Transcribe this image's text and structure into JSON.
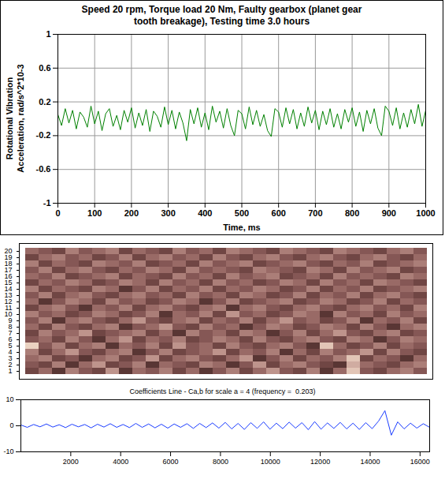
{
  "chart_data": [
    {
      "type": "line",
      "title": "Speed 20 rpm, Torque load 20 Nm, Faulty gearbox (planet gear tooth breakage), Testing time 3.0 hours",
      "xlabel": "Time, ms",
      "ylabel": "Rotational Vibration Acceleration, rad/s^2*10-3",
      "color": "#008000",
      "grid": true,
      "xlim": [
        0,
        1000
      ],
      "ylim": [
        -1,
        1
      ],
      "xticks": [
        0,
        100,
        200,
        300,
        400,
        500,
        600,
        700,
        800,
        900,
        1000
      ],
      "yticks": [
        -1,
        -0.6,
        -0.2,
        0.2,
        0.6,
        1
      ],
      "x": [
        0,
        10,
        20,
        30,
        40,
        50,
        60,
        70,
        80,
        90,
        100,
        110,
        120,
        130,
        140,
        150,
        160,
        170,
        180,
        190,
        200,
        210,
        220,
        230,
        240,
        250,
        260,
        270,
        280,
        290,
        300,
        310,
        320,
        330,
        340,
        350,
        360,
        370,
        380,
        390,
        400,
        410,
        420,
        430,
        440,
        450,
        460,
        470,
        480,
        490,
        500,
        510,
        520,
        530,
        540,
        550,
        560,
        570,
        580,
        590,
        600,
        610,
        620,
        630,
        640,
        650,
        660,
        670,
        680,
        690,
        700,
        710,
        720,
        730,
        740,
        750,
        760,
        770,
        780,
        790,
        800,
        810,
        820,
        830,
        840,
        850,
        860,
        870,
        880,
        890,
        900,
        910,
        920,
        930,
        940,
        950,
        960,
        970,
        980,
        990,
        1000
      ],
      "values": [
        0.05,
        -0.08,
        0.12,
        -0.05,
        0.1,
        -0.12,
        0.08,
        0.02,
        -0.1,
        0.15,
        -0.06,
        0.09,
        -0.14,
        0.06,
        0.12,
        -0.09,
        0.04,
        -0.13,
        0.1,
        -0.04,
        0.13,
        -0.11,
        0.07,
        -0.08,
        0.11,
        -0.15,
        0.09,
        0.03,
        -0.1,
        0.14,
        -0.07,
        0.1,
        -0.12,
        0.08,
        -0.05,
        -0.26,
        0.11,
        -0.06,
        0.13,
        -0.1,
        0.07,
        -0.13,
        0.15,
        -0.04,
        0.09,
        -0.11,
        0.12,
        -0.08,
        -0.2,
        0.1,
        0.06,
        -0.12,
        0.14,
        -0.07,
        0.1,
        -0.09,
        0.05,
        -0.14,
        -0.21,
        0.12,
        0.08,
        -0.1,
        0.13,
        -0.06,
        0.11,
        -0.12,
        0.07,
        -0.09,
        0.14,
        -0.05,
        0.1,
        -0.13,
        0.09,
        -0.07,
        0.12,
        -0.1,
        0.06,
        -0.12,
        0.11,
        -0.04,
        0.13,
        -0.09,
        0.08,
        -0.15,
        0.1,
        -0.06,
        0.12,
        -0.11,
        -0.2,
        0.15,
        0.09,
        -0.08,
        0.13,
        -0.12,
        0.07,
        -0.1,
        0.11,
        -0.06,
        0.17,
        -0.09,
        0.1
      ]
    },
    {
      "type": "heatmap",
      "tick_labels": "y",
      "rows": [
        1,
        2,
        3,
        4,
        5,
        6,
        7,
        8,
        9,
        10,
        11,
        12,
        13,
        14,
        15,
        16,
        17,
        18,
        19,
        20
      ],
      "yticks": [
        1,
        2,
        3,
        4,
        5,
        6,
        7,
        8,
        9,
        10,
        11,
        12,
        13,
        14,
        15,
        16,
        17,
        18,
        19,
        20
      ],
      "clim": [
        0,
        1
      ],
      "cells": [
        [
          0.3,
          0.5,
          0.2,
          0.6,
          0.4,
          0.3,
          0.7,
          0.2,
          0.5,
          0.4,
          0.6,
          0.3,
          0.5,
          0.2,
          0.4,
          0.6,
          0.3,
          0.5,
          0.7,
          0.4,
          0.3,
          0.6,
          0.2,
          0.5,
          0.9,
          0.4,
          0.3,
          0.5,
          0.6,
          0.4
        ],
        [
          0.4,
          0.3,
          0.6,
          0.2,
          0.5,
          0.7,
          0.3,
          0.4,
          0.6,
          0.2,
          0.5,
          0.4,
          0.3,
          0.6,
          0.5,
          0.2,
          0.4,
          0.7,
          0.3,
          0.5,
          0.6,
          0.4,
          0.3,
          0.2,
          0.8,
          0.5,
          0.4,
          0.3,
          0.5,
          0.6
        ],
        [
          0.5,
          0.6,
          0.3,
          0.4,
          0.2,
          0.5,
          0.6,
          0.3,
          0.4,
          0.7,
          0.3,
          0.5,
          0.6,
          0.4,
          0.3,
          0.5,
          0.7,
          0.2,
          0.4,
          0.6,
          0.3,
          0.5,
          0.4,
          0.6,
          0.9,
          0.3,
          0.5,
          0.4,
          0.2,
          0.5
        ],
        [
          0.6,
          0.3,
          0.5,
          0.7,
          0.4,
          0.3,
          0.5,
          0.6,
          0.2,
          0.4,
          0.6,
          0.3,
          0.4,
          0.5,
          0.7,
          0.3,
          0.5,
          0.4,
          0.6,
          0.2,
          0.5,
          0.3,
          0.6,
          0.4,
          0.5,
          0.7,
          0.3,
          0.6,
          0.4,
          0.3
        ],
        [
          0.95,
          0.4,
          0.6,
          0.3,
          0.5,
          0.6,
          0.2,
          0.5,
          0.4,
          0.6,
          0.3,
          0.7,
          0.4,
          0.5,
          0.3,
          0.6,
          0.4,
          0.3,
          0.5,
          0.6,
          0.4,
          0.2,
          0.9,
          0.5,
          0.3,
          0.4,
          0.6,
          0.3,
          0.5,
          0.4
        ],
        [
          0.4,
          0.5,
          0.3,
          0.6,
          0.4,
          0.2,
          0.5,
          0.7,
          0.3,
          0.5,
          0.4,
          0.6,
          0.3,
          0.4,
          0.6,
          0.5,
          0.3,
          0.6,
          0.4,
          0.3,
          0.5,
          0.6,
          0.4,
          0.3,
          0.6,
          0.5,
          0.2,
          0.4,
          0.6,
          0.5
        ],
        [
          0.3,
          0.6,
          0.4,
          0.5,
          0.7,
          0.3,
          0.4,
          0.5,
          0.6,
          0.3,
          0.5,
          0.2,
          0.6,
          0.4,
          0.5,
          0.3,
          0.6,
          0.5,
          0.2,
          0.4,
          0.6,
          0.3,
          0.5,
          0.7,
          0.4,
          0.3,
          0.5,
          0.6,
          0.3,
          0.4
        ],
        [
          0.5,
          0.3,
          0.6,
          0.4,
          0.3,
          0.5,
          0.6,
          0.2,
          0.4,
          0.5,
          0.7,
          0.4,
          0.3,
          0.6,
          0.4,
          0.5,
          0.2,
          0.4,
          0.6,
          0.5,
          0.3,
          0.4,
          0.6,
          0.5,
          0.3,
          0.6,
          0.4,
          0.2,
          0.5,
          0.6
        ],
        [
          0.4,
          0.6,
          0.2,
          0.5,
          0.6,
          0.4,
          0.3,
          0.5,
          0.7,
          0.4,
          0.3,
          0.5,
          0.6,
          0.3,
          0.5,
          0.4,
          0.6,
          0.3,
          0.5,
          0.7,
          0.4,
          0.5,
          0.3,
          0.4,
          0.6,
          0.2,
          0.5,
          0.4,
          0.6,
          0.3
        ],
        [
          0.6,
          0.4,
          0.5,
          0.3,
          0.4,
          0.6,
          0.5,
          0.3,
          0.4,
          0.6,
          0.2,
          0.5,
          0.4,
          0.6,
          0.3,
          0.7,
          0.4,
          0.5,
          0.3,
          0.4,
          0.6,
          0.5,
          0.2,
          0.6,
          0.4,
          0.5,
          0.3,
          0.6,
          0.4,
          0.5
        ],
        [
          0.3,
          0.5,
          0.6,
          0.4,
          0.2,
          0.5,
          0.4,
          0.6,
          0.3,
          0.5,
          0.6,
          0.4,
          0.3,
          0.5,
          0.6,
          0.2,
          0.5,
          0.6,
          0.4,
          0.3,
          0.5,
          0.6,
          0.4,
          0.3,
          0.5,
          0.6,
          0.4,
          0.5,
          0.3,
          0.6
        ],
        [
          0.5,
          0.2,
          0.4,
          0.6,
          0.5,
          0.3,
          0.6,
          0.4,
          0.5,
          0.3,
          0.4,
          0.6,
          0.5,
          0.2,
          0.4,
          0.6,
          0.3,
          0.4,
          0.5,
          0.6,
          0.3,
          0.4,
          0.6,
          0.5,
          0.3,
          0.4,
          0.6,
          0.3,
          0.5,
          0.4
        ],
        [
          0.4,
          0.6,
          0.3,
          0.5,
          0.6,
          0.4,
          0.3,
          0.5,
          0.6,
          0.4,
          0.5,
          0.3,
          0.6,
          0.4,
          0.5,
          0.3,
          0.6,
          0.5,
          0.3,
          0.4,
          0.6,
          0.3,
          0.5,
          0.4,
          0.6,
          0.3,
          0.5,
          0.6,
          0.4,
          0.3
        ],
        [
          0.6,
          0.3,
          0.5,
          0.4,
          0.3,
          0.6,
          0.5,
          0.2,
          0.4,
          0.6,
          0.3,
          0.5,
          0.4,
          0.6,
          0.3,
          0.5,
          0.4,
          0.6,
          0.5,
          0.3,
          0.4,
          0.6,
          0.3,
          0.5,
          0.4,
          0.6,
          0.3,
          0.4,
          0.5,
          0.6
        ],
        [
          0.3,
          0.5,
          0.4,
          0.6,
          0.5,
          0.3,
          0.4,
          0.6,
          0.5,
          0.3,
          0.6,
          0.4,
          0.5,
          0.3,
          0.6,
          0.4,
          0.5,
          0.3,
          0.4,
          0.6,
          0.5,
          0.3,
          0.6,
          0.4,
          0.5,
          0.3,
          0.6,
          0.5,
          0.4,
          0.3
        ],
        [
          0.5,
          0.4,
          0.6,
          0.3,
          0.4,
          0.5,
          0.6,
          0.3,
          0.5,
          0.4,
          0.3,
          0.6,
          0.4,
          0.5,
          0.3,
          0.6,
          0.4,
          0.5,
          0.6,
          0.3,
          0.4,
          0.5,
          0.3,
          0.6,
          0.4,
          0.5,
          0.4,
          0.3,
          0.6,
          0.5
        ],
        [
          0.4,
          0.6,
          0.3,
          0.5,
          0.6,
          0.4,
          0.3,
          0.5,
          0.4,
          0.6,
          0.5,
          0.3,
          0.6,
          0.4,
          0.5,
          0.4,
          0.3,
          0.6,
          0.5,
          0.4,
          0.3,
          0.6,
          0.5,
          0.3,
          0.6,
          0.4,
          0.5,
          0.6,
          0.3,
          0.4
        ],
        [
          0.6,
          0.3,
          0.5,
          0.4,
          0.3,
          0.6,
          0.5,
          0.4,
          0.6,
          0.3,
          0.4,
          0.5,
          0.3,
          0.6,
          0.4,
          0.5,
          0.6,
          0.3,
          0.4,
          0.5,
          0.6,
          0.4,
          0.3,
          0.5,
          0.4,
          0.6,
          0.3,
          0.4,
          0.5,
          0.6
        ],
        [
          0.3,
          0.5,
          0.6,
          0.4,
          0.5,
          0.3,
          0.4,
          0.6,
          0.3,
          0.5,
          0.6,
          0.4,
          0.5,
          0.3,
          0.6,
          0.4,
          0.3,
          0.5,
          0.6,
          0.4,
          0.3,
          0.5,
          0.6,
          0.4,
          0.3,
          0.5,
          0.6,
          0.4,
          0.3,
          0.5
        ],
        [
          0.5,
          0.4,
          0.3,
          0.6,
          0.4,
          0.5,
          0.6,
          0.3,
          0.5,
          0.4,
          0.3,
          0.6,
          0.4,
          0.5,
          0.3,
          0.6,
          0.5,
          0.4,
          0.3,
          0.6,
          0.5,
          0.4,
          0.3,
          0.6,
          0.5,
          0.4,
          0.3,
          0.5,
          0.6,
          0.4
        ]
      ]
    },
    {
      "type": "line",
      "title": "Coefficients Line - Ca,b for scale a = 4 (frequency =  0.203)",
      "color": "#1a3cff",
      "grid": false,
      "xlim": [
        0,
        16384
      ],
      "ylim": [
        -10,
        10
      ],
      "xticks": [
        2000,
        4000,
        6000,
        8000,
        10000,
        12000,
        14000,
        16000
      ],
      "yticks": [
        -10,
        0,
        10
      ],
      "x": [
        0,
        256,
        512,
        768,
        1024,
        1280,
        1536,
        1792,
        2048,
        2304,
        2560,
        2816,
        3072,
        3328,
        3584,
        3840,
        4096,
        4352,
        4608,
        4864,
        5120,
        5376,
        5632,
        5888,
        6144,
        6400,
        6656,
        6912,
        7168,
        7424,
        7680,
        7936,
        8192,
        8448,
        8704,
        8960,
        9216,
        9472,
        9728,
        9984,
        10240,
        10496,
        10752,
        11008,
        11264,
        11520,
        11776,
        12032,
        12288,
        12544,
        12800,
        13056,
        13312,
        13568,
        13824,
        14080,
        14336,
        14592,
        14848,
        15104,
        15360,
        15616,
        15872,
        16128,
        16384
      ],
      "values": [
        0.3,
        -0.6,
        0.5,
        -0.4,
        0.7,
        -0.5,
        0.4,
        -0.7,
        0.6,
        -0.4,
        0.5,
        -0.8,
        0.6,
        -0.5,
        0.8,
        -0.6,
        0.5,
        -0.7,
        0.9,
        -0.6,
        0.7,
        -0.8,
        0.6,
        -0.9,
        0.7,
        -0.6,
        0.8,
        -1.0,
        0.9,
        -0.7,
        1.1,
        -0.9,
        1.3,
        -1.2,
        0.9,
        -1.4,
        1.2,
        -1.0,
        1.5,
        -1.3,
        1.0,
        -1.1,
        1.4,
        -0.9,
        1.2,
        -1.5,
        1.6,
        -1.3,
        1.1,
        -1.0,
        1.3,
        -1.2,
        1.0,
        -1.4,
        1.2,
        -1.1,
        1.8,
        5.8,
        -3.6,
        1.5,
        -1.2,
        1.0,
        -0.9,
        0.8,
        -0.6
      ]
    }
  ]
}
